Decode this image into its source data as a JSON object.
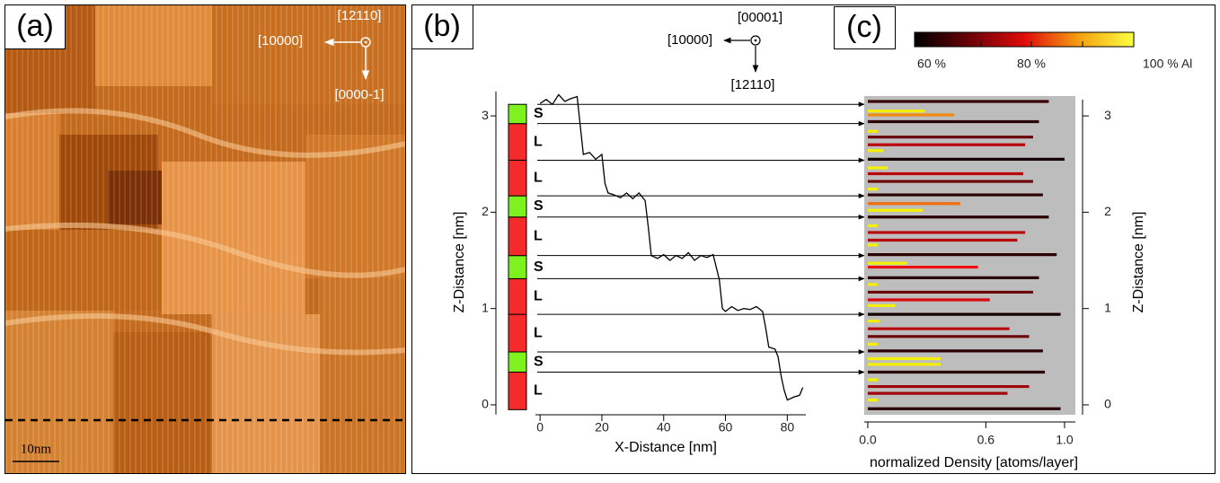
{
  "panel_a": {
    "label": "(a)",
    "directions": [
      "[12110]",
      "[10000]",
      "[0000-1]"
    ],
    "scale_bar": "10nm"
  },
  "panel_b": {
    "label": "(b)",
    "directions": [
      "[00001]",
      "[10000]",
      "[12110]"
    ],
    "xlabel": "X-Distance [nm]",
    "ylabel": "Z-Distance [nm]",
    "xlim": [
      -1.5,
      86
    ],
    "ylim": [
      -0.1,
      3.3
    ],
    "xticks": [
      0,
      20,
      40,
      60,
      80
    ],
    "yticks": [
      0,
      1,
      2,
      3
    ],
    "profile": {
      "x": [
        0,
        2,
        4,
        6,
        8,
        10,
        12,
        13,
        14,
        16,
        18,
        20,
        21,
        22,
        24,
        26,
        28,
        30,
        32,
        34,
        35,
        36,
        38,
        40,
        42,
        44,
        46,
        48,
        50,
        52,
        54,
        56,
        58,
        59,
        60,
        62,
        64,
        66,
        68,
        70,
        72,
        73,
        74,
        76,
        77,
        78,
        79,
        80,
        82,
        84,
        85
      ],
      "z": [
        3.13,
        3.17,
        3.12,
        3.22,
        3.15,
        3.18,
        3.2,
        2.9,
        2.6,
        2.62,
        2.55,
        2.6,
        2.3,
        2.2,
        2.18,
        2.15,
        2.2,
        2.14,
        2.2,
        2.12,
        1.85,
        1.55,
        1.52,
        1.56,
        1.5,
        1.55,
        1.52,
        1.58,
        1.5,
        1.55,
        1.53,
        1.56,
        1.3,
        1.0,
        0.97,
        1.02,
        0.98,
        1.0,
        0.99,
        1.02,
        0.97,
        0.8,
        0.6,
        0.58,
        0.5,
        0.3,
        0.15,
        0.05,
        0.08,
        0.1,
        0.18
      ]
    },
    "layers": {
      "labels": [
        "L",
        "S",
        "L",
        "L",
        "S",
        "L",
        "S",
        "L",
        "L",
        "S"
      ],
      "boundaries": [
        -0.05,
        0.34,
        0.55,
        0.94,
        1.31,
        1.55,
        1.95,
        2.17,
        2.54,
        2.92,
        3.12
      ],
      "colors": {
        "S": "#7df21e",
        "L": "#f52a2a"
      }
    }
  },
  "panel_c": {
    "label": "(c)",
    "xlabel": "normalized Density  [atoms/layer]",
    "ylabel": "Z-Distance [nm]",
    "xlim": [
      -0.018,
      1.055
    ],
    "xticks": [
      {
        "value": 0,
        "label": "0.0"
      },
      0.6,
      {
        "value": 1,
        "label": "1.0"
      }
    ],
    "yticks": [
      0,
      1,
      2,
      3
    ],
    "bars": {
      "z": [
        3.15,
        3.05,
        3.01,
        2.94,
        2.84,
        2.78,
        2.7,
        2.64,
        2.55,
        2.46,
        2.4,
        2.32,
        2.24,
        2.18,
        2.09,
        2.02,
        1.95,
        1.86,
        1.79,
        1.71,
        1.66,
        1.56,
        1.47,
        1.43,
        1.32,
        1.25,
        1.17,
        1.09,
        1.03,
        0.94,
        0.87,
        0.79,
        0.71,
        0.63,
        0.56,
        0.48,
        0.42,
        0.34,
        0.26,
        0.19,
        0.12,
        0.05,
        -0.04
      ],
      "values": [
        0.92,
        0.29,
        0.44,
        0.87,
        0.05,
        0.84,
        0.8,
        0.08,
        1.0,
        0.1,
        0.79,
        0.84,
        0.05,
        0.89,
        0.47,
        0.28,
        0.92,
        0.05,
        0.8,
        0.76,
        0.05,
        0.96,
        0.2,
        0.56,
        0.87,
        0.05,
        0.84,
        0.62,
        0.14,
        0.98,
        0.06,
        0.72,
        0.82,
        0.05,
        0.89,
        0.37,
        0.37,
        0.9,
        0.05,
        0.82,
        0.71,
        0.05,
        0.98
      ],
      "colors": [
        "#3a0205",
        "#f5f000",
        "#f08a10",
        "#2a0204",
        "#f5f000",
        "#6a0208",
        "#b8080c",
        "#f5f000",
        "#160102",
        "#f5f000",
        "#b8080c",
        "#6a0208",
        "#f5f000",
        "#2a0204",
        "#f07010",
        "#f5f000",
        "#2a0204",
        "#f5f000",
        "#b8080c",
        "#b8080c",
        "#f5f000",
        "#2a0204",
        "#f5f000",
        "#ee1010",
        "#2a0204",
        "#f5f000",
        "#6a0208",
        "#d80a0e",
        "#f5f000",
        "#160102",
        "#f5f000",
        "#b8080c",
        "#6a0208",
        "#f5f000",
        "#2a0204",
        "#f5f000",
        "#f5f000",
        "#2a0204",
        "#f5f000",
        "#a0060a",
        "#a0060a",
        "#f5f000",
        "#2a0204"
      ]
    },
    "colorbar": {
      "labels": [
        "60 %",
        "80 %",
        "100 % Al"
      ],
      "colors": [
        "#000000",
        "#6a0208",
        "#e00a0a",
        "#f5a010",
        "#fbff40"
      ]
    }
  }
}
